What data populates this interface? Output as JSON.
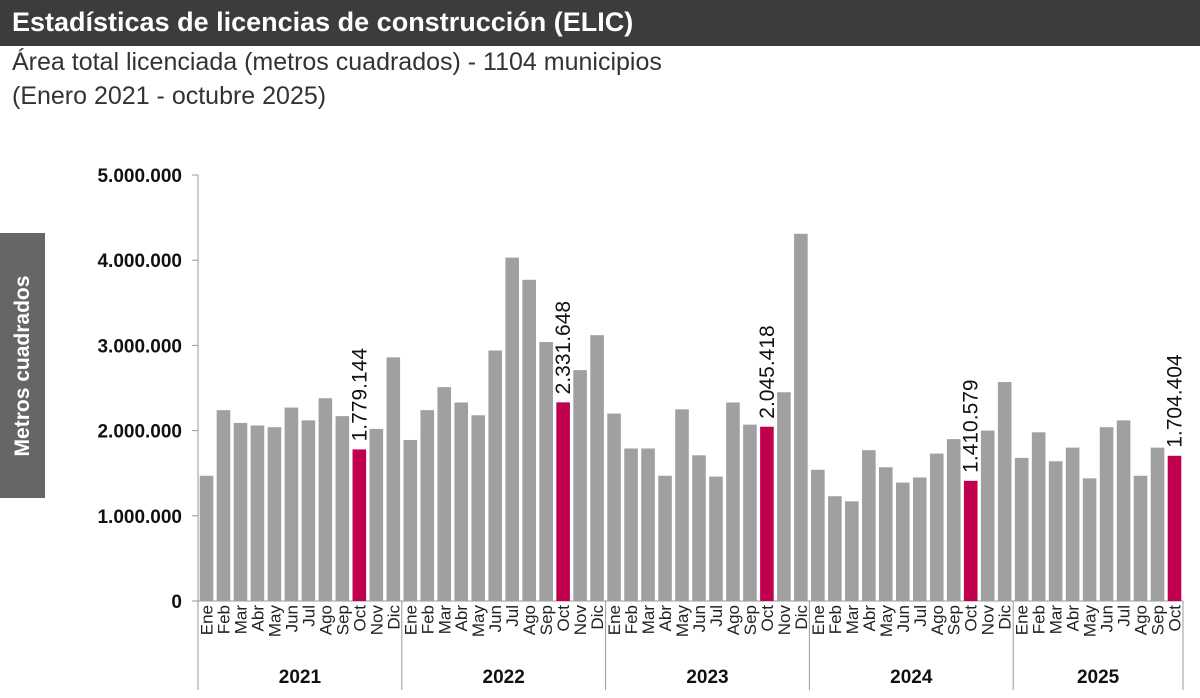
{
  "chart_data": {
    "type": "bar",
    "title": "Estadísticas de licencias de construcción (ELIC)",
    "subtitle": [
      "Área total licenciada (metros cuadrados) - 1104 municipios",
      "(Enero 2021 - octubre 2025)"
    ],
    "y_label": "Metros cuadrados",
    "ylim": [
      0,
      5000000
    ],
    "yticks": [
      0,
      {
        "value": 1000000,
        "label": "1.000.000"
      },
      {
        "value": 2000000,
        "label": "2.000.000"
      },
      {
        "value": 3000000,
        "label": "3.000.000"
      },
      {
        "value": 4000000,
        "label": "4.000.000"
      },
      {
        "value": 5000000,
        "label": "5.000.000"
      }
    ],
    "groups": [
      {
        "name": "2021",
        "categories": [
          "Ene",
          "Feb",
          "Mar",
          "Abr",
          "May",
          "Jun",
          "Jul",
          "Ago",
          "Sep",
          "Oct",
          "Nov",
          "Dic"
        ],
        "values": [
          1470000,
          2240000,
          2090000,
          2060000,
          2040000,
          2270000,
          2120000,
          2380000,
          2170000,
          1779144,
          2020000,
          2860000
        ],
        "value_labels": [
          null,
          null,
          null,
          null,
          null,
          null,
          null,
          null,
          null,
          "1.779.144",
          null,
          null
        ],
        "colors": [
          "#a0a0a0",
          "#a0a0a0",
          "#a0a0a0",
          "#a0a0a0",
          "#a0a0a0",
          "#a0a0a0",
          "#a0a0a0",
          "#a0a0a0",
          "#a0a0a0",
          "#c0004e",
          "#a0a0a0",
          "#a0a0a0"
        ]
      },
      {
        "name": "2022",
        "categories": [
          "Ene",
          "Feb",
          "Mar",
          "Abr",
          "May",
          "Jun",
          "Jul",
          "Ago",
          "Sep",
          "Oct",
          "Nov",
          "Dic"
        ],
        "values": [
          1890000,
          2240000,
          2510000,
          2330000,
          2180000,
          2940000,
          4030000,
          3770000,
          3040000,
          2331648,
          2710000,
          3120000
        ],
        "value_labels": [
          null,
          null,
          null,
          null,
          null,
          null,
          null,
          null,
          null,
          "2.331.648",
          null,
          null
        ],
        "colors": [
          "#a0a0a0",
          "#a0a0a0",
          "#a0a0a0",
          "#a0a0a0",
          "#a0a0a0",
          "#a0a0a0",
          "#a0a0a0",
          "#a0a0a0",
          "#a0a0a0",
          "#c0004e",
          "#a0a0a0",
          "#a0a0a0"
        ]
      },
      {
        "name": "2023",
        "categories": [
          "Ene",
          "Feb",
          "Mar",
          "Abr",
          "May",
          "Jun",
          "Jul",
          "Ago",
          "Sep",
          "Oct",
          "Nov",
          "Dic"
        ],
        "values": [
          2200000,
          1790000,
          1790000,
          1470000,
          2250000,
          1710000,
          1460000,
          2330000,
          2070000,
          2045418,
          2450000,
          4310000
        ],
        "value_labels": [
          null,
          null,
          null,
          null,
          null,
          null,
          null,
          null,
          null,
          "2.045.418",
          null,
          null
        ],
        "colors": [
          "#a0a0a0",
          "#a0a0a0",
          "#a0a0a0",
          "#a0a0a0",
          "#a0a0a0",
          "#a0a0a0",
          "#a0a0a0",
          "#a0a0a0",
          "#a0a0a0",
          "#c0004e",
          "#a0a0a0",
          "#a0a0a0"
        ]
      },
      {
        "name": "2024",
        "categories": [
          "Ene",
          "Feb",
          "Mar",
          "Abr",
          "May",
          "Jun",
          "Jul",
          "Ago",
          "Sep",
          "Oct",
          "Nov",
          "Dic"
        ],
        "values": [
          1540000,
          1230000,
          1170000,
          1770000,
          1570000,
          1390000,
          1450000,
          1730000,
          1900000,
          1410579,
          2000000,
          2570000
        ],
        "value_labels": [
          null,
          null,
          null,
          null,
          null,
          null,
          null,
          null,
          null,
          "1.410.579",
          null,
          null
        ],
        "colors": [
          "#a0a0a0",
          "#a0a0a0",
          "#a0a0a0",
          "#a0a0a0",
          "#a0a0a0",
          "#a0a0a0",
          "#a0a0a0",
          "#a0a0a0",
          "#a0a0a0",
          "#c0004e",
          "#a0a0a0",
          "#a0a0a0"
        ]
      },
      {
        "name": "2025",
        "categories": [
          "Ene",
          "Feb",
          "Mar",
          "Abr",
          "May",
          "Jun",
          "Jul",
          "Ago",
          "Sep",
          "Oct"
        ],
        "values": [
          1680000,
          1980000,
          1640000,
          1800000,
          1440000,
          2040000,
          2120000,
          1470000,
          1800000,
          1704404
        ],
        "value_labels": [
          null,
          null,
          null,
          null,
          null,
          null,
          null,
          null,
          null,
          "1.704.404"
        ],
        "colors": [
          "#a0a0a0",
          "#a0a0a0",
          "#a0a0a0",
          "#a0a0a0",
          "#a0a0a0",
          "#a0a0a0",
          "#a0a0a0",
          "#a0a0a0",
          "#a0a0a0",
          "#c0004e"
        ]
      }
    ]
  }
}
